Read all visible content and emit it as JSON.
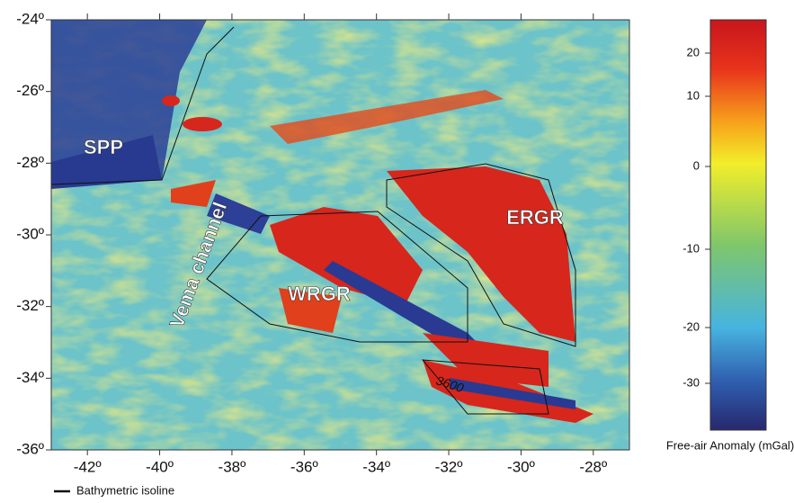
{
  "map": {
    "xaxis": {
      "lim": [
        -43,
        -27
      ],
      "ticks": [
        {
          "value": -42,
          "label": "-42º"
        },
        {
          "value": -40,
          "label": "-40º"
        },
        {
          "value": -38,
          "label": "-38º"
        },
        {
          "value": -36,
          "label": "-36º"
        },
        {
          "value": -34,
          "label": "-34º"
        },
        {
          "value": -32,
          "label": "-32º"
        },
        {
          "value": -30,
          "label": "-30º"
        },
        {
          "value": -28,
          "label": "-28º"
        }
      ]
    },
    "yaxis": {
      "lim": [
        -36,
        -24
      ],
      "ticks": [
        {
          "value": -24,
          "label": "-24º"
        },
        {
          "value": -26,
          "label": "-26º"
        },
        {
          "value": -28,
          "label": "-28º"
        },
        {
          "value": -30,
          "label": "-30º"
        },
        {
          "value": -32,
          "label": "-32º"
        },
        {
          "value": -34,
          "label": "-34º"
        },
        {
          "value": -36,
          "label": "-36º"
        }
      ]
    },
    "labels": [
      "SPP",
      "Vema channel",
      "WRGR",
      "ERGR"
    ],
    "contour_label": "3600",
    "colorbar": {
      "label": "Free-air Anomaly (mGal)",
      "ticks": [
        20,
        10,
        0,
        -10,
        -20,
        -30
      ]
    },
    "legend": "Bathymetric isoline"
  }
}
